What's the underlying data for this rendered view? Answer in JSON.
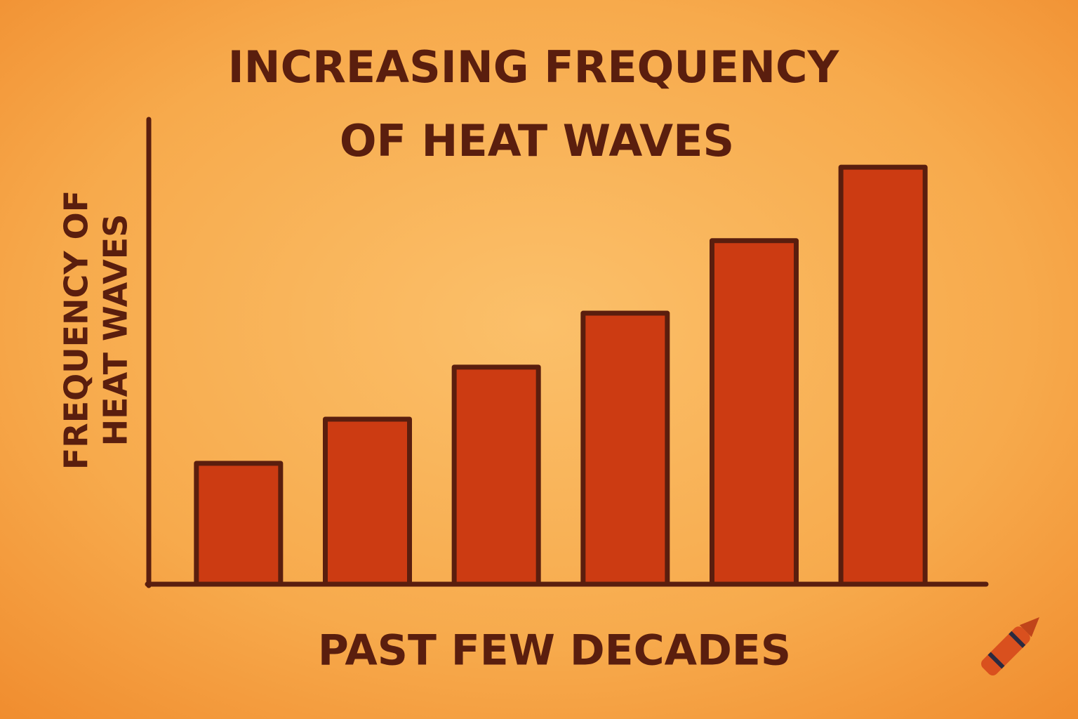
{
  "chart_data": {
    "type": "bar",
    "title": [
      "INCREASING FREQUENCY",
      "OF HEAT WAVES"
    ],
    "y_label": [
      "FREQUENCY OF",
      "HEAT WAVES"
    ],
    "x_label": "PAST FEW DECADES",
    "categories": [
      null,
      null,
      null,
      null,
      null,
      null
    ],
    "values": [
      26,
      35.5,
      46.7,
      58.3,
      73.9,
      89.7
    ],
    "color": "#cc3b12",
    "ylim": [
      0,
      100
    ]
  }
}
